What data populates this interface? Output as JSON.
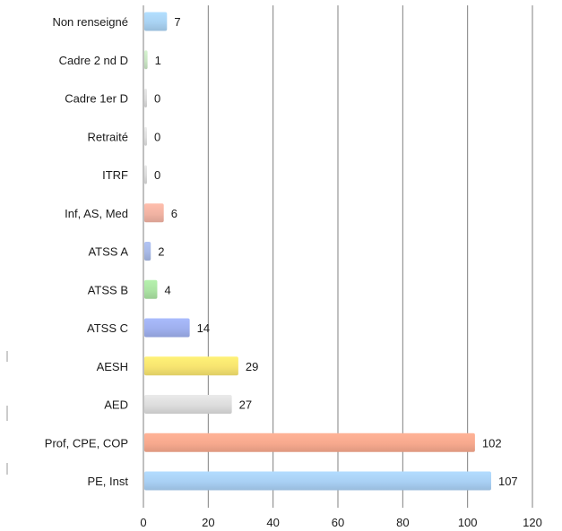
{
  "chart_data": {
    "type": "bar",
    "orientation": "horizontal",
    "title": "",
    "xlabel": "",
    "ylabel": "",
    "categories": [
      "Non renseigné",
      "Cadre 2 nd D",
      "Cadre 1er D",
      "Retraité",
      "ITRF",
      "Inf, AS, Med",
      "ATSS A",
      "ATSS B",
      "ATSS C",
      "AESH",
      "AED",
      "Prof, CPE, COP",
      "PE, Inst"
    ],
    "values": [
      7,
      1,
      0,
      0,
      0,
      6,
      2,
      4,
      14,
      29,
      27,
      102,
      107
    ],
    "value_labels": [
      "7",
      "1",
      "0",
      "0",
      "0",
      "6",
      "2",
      "4",
      "14",
      "29",
      "27",
      "102",
      "107"
    ],
    "colors": [
      "#a9d2f2",
      "#c9e5c3",
      "#dcdcdc",
      "#e0e0e0",
      "#dcdcdc",
      "#f1b3a3",
      "#a8b9e6",
      "#abe3a3",
      "#9fb0ee",
      "#f7e470",
      "#dddddd",
      "#f7a98e",
      "#a9d0f4"
    ],
    "xlim": [
      0,
      120
    ],
    "xticks": [
      "0",
      "20",
      "40",
      "60",
      "80",
      "100",
      "120"
    ],
    "grid": true,
    "legend": "none"
  }
}
